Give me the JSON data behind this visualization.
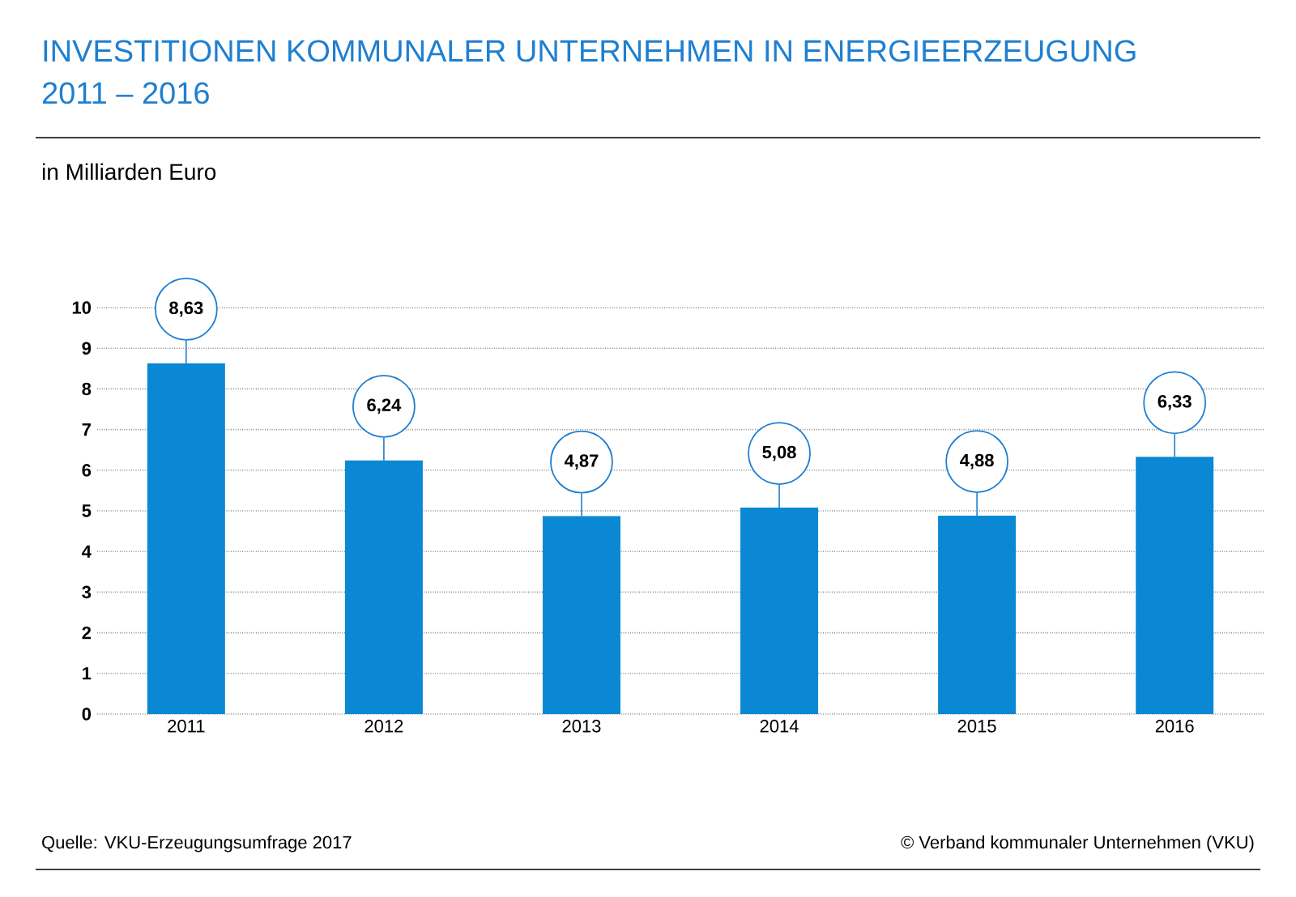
{
  "chart_data": {
    "type": "bar",
    "title": "INVESTITIONEN KOMMUNALER UNTERNEHMEN IN ENERGIEERZEUGUNG",
    "subtitle": "2011 – 2016",
    "categories": [
      "2011",
      "2012",
      "2013",
      "2014",
      "2015",
      "2016"
    ],
    "values": [
      8.63,
      6.24,
      4.87,
      5.08,
      4.88,
      6.33
    ],
    "value_labels": [
      "8,63",
      "6,24",
      "4,87",
      "5,08",
      "4,88",
      "6,33"
    ],
    "color": "#0a88d4",
    "ylim": [
      0,
      10
    ],
    "yticks": [
      0,
      1,
      2,
      3,
      4,
      5,
      6,
      7,
      8,
      9,
      10
    ],
    "grid": "y",
    "annotations": [
      "in Milliarden Euro",
      "Quelle: VKU-Erzeugungsumfrage 2017",
      "© Verband kommunaler Unternehmen (VKU)"
    ]
  }
}
